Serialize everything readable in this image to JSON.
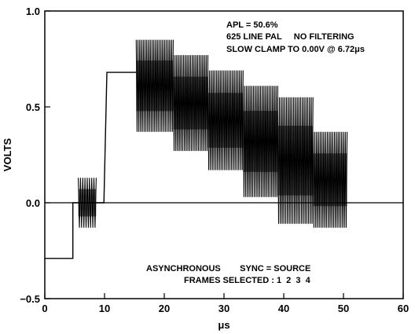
{
  "chart_data": {
    "type": "line",
    "title": "",
    "xlabel": "μs",
    "ylabel": "VOLTS",
    "xlim": [
      0,
      60
    ],
    "ylim": [
      -0.5,
      1.0
    ],
    "x_ticks": [
      0,
      10,
      20,
      30,
      40,
      50,
      60
    ],
    "y_ticks": [
      -0.5,
      0.0,
      0.5,
      1.0
    ],
    "x_tick_labels": [
      "0",
      "10",
      "20",
      "30",
      "40",
      "50",
      "60"
    ],
    "y_tick_labels": [
      "−0.5",
      "0.0",
      "0.5",
      "1.0"
    ],
    "zero_line": 0.0,
    "grid": false,
    "annotations": {
      "top": [
        "APL = 50.6%",
        "625 LINE PAL     NO FILTERING",
        "SLOW CLAMP TO 0.00V @ 6.72μs"
      ],
      "bottom": [
        "ASYNCHRONOUS        SYNC = SOURCE",
        "FRAMES SELECTED : 1  2  3  4"
      ]
    },
    "series": [
      {
        "x": [
          0,
          4.7,
          4.7,
          5.6,
          5.6,
          8.6,
          8.6,
          9.9,
          10.4,
          10.4,
          15.3
        ],
        "y": [
          -0.29,
          -0.29,
          0.0,
          0.0,
          0.0,
          0.0,
          0.0,
          0.0,
          0.68,
          0.68,
          0.68
        ]
      }
    ],
    "burst": {
      "x_start": 5.6,
      "x_end": 8.6,
      "center": 0.0,
      "amplitude": 0.13,
      "cycles": 16
    },
    "chroma_steps": [
      {
        "x_start": 15.3,
        "x_end": 21.5,
        "center": 0.61,
        "amplitude": 0.24,
        "cycles": 42
      },
      {
        "x_start": 21.5,
        "x_end": 27.3,
        "center": 0.52,
        "amplitude": 0.25,
        "cycles": 40
      },
      {
        "x_start": 27.3,
        "x_end": 33.2,
        "center": 0.43,
        "amplitude": 0.26,
        "cycles": 40
      },
      {
        "x_start": 33.2,
        "x_end": 39.0,
        "center": 0.32,
        "amplitude": 0.29,
        "cycles": 40
      },
      {
        "x_start": 39.0,
        "x_end": 44.9,
        "center": 0.22,
        "amplitude": 0.33,
        "cycles": 40
      },
      {
        "x_start": 44.9,
        "x_end": 50.6,
        "center": 0.12,
        "amplitude": 0.25,
        "cycles": 38
      }
    ]
  }
}
